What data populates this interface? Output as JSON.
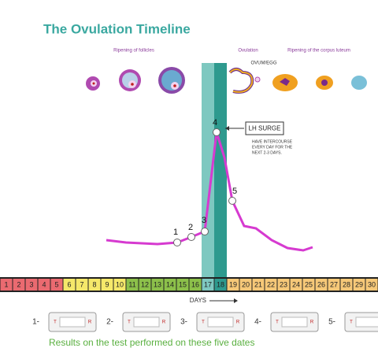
{
  "title": "The Ovulation Timeline",
  "phases": [
    "Ripening of follicles",
    "Ovulation",
    "Ripening of the corpus luteum"
  ],
  "ovum_label": "OVUM/EGG",
  "lh_surge": "LH SURGE",
  "note": [
    "HAVE INTERCOURSE",
    "EVERY DAY FOR THE",
    "NEXT 2-3 DAYS."
  ],
  "points": [
    "1",
    "2",
    "3",
    "4",
    "5"
  ],
  "days": [
    1,
    2,
    3,
    4,
    5,
    6,
    7,
    8,
    9,
    10,
    11,
    12,
    13,
    14,
    15,
    16,
    17,
    18,
    19,
    20,
    21,
    22,
    23,
    24,
    25,
    26,
    27,
    28,
    29,
    30
  ],
  "days_label": "DAYS",
  "tests": [
    "1-",
    "2-",
    "3-",
    "4-",
    "5-"
  ],
  "test_marks": [
    "T",
    "R"
  ],
  "caption": "Results on the test performed on these five dates"
}
